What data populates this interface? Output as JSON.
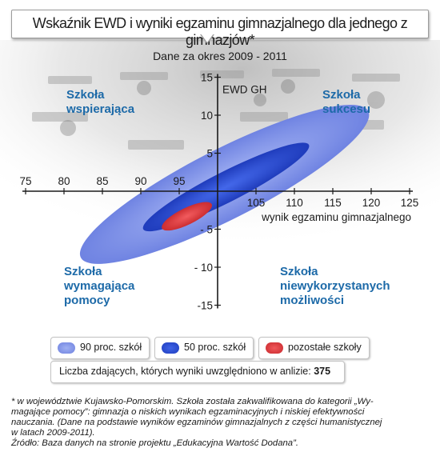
{
  "title": "Wskaźnik EWD i wyniki egzaminu gimnazjalnego dla jednego z gimnazjów*",
  "period": "Dane za okres 2009 - 2011",
  "quadrants": {
    "top_left": [
      "Szkoła",
      "wspierająca"
    ],
    "top_right": [
      "Szkoła",
      "sukcesu"
    ],
    "bottom_left": [
      "Szkoła",
      "wymagająca",
      "pomocy"
    ],
    "bottom_right": [
      "Szkoła",
      "niewykorzystanych",
      "możliwości"
    ]
  },
  "colors": {
    "axis": "#1a1a1a",
    "outer": "#7b8de6",
    "inner": "#2a4fd0",
    "red": "#e0393b",
    "quadrant_text": "#1d6aa8"
  },
  "chart_data": {
    "type": "scatter",
    "title": "Wskaźnik EWD i wyniki egzaminu gimnazjalnego dla jednego z gimnazjów*",
    "xlabel": "wynik egzaminu gimnazjalnego",
    "ylabel": "EWD GH",
    "xlim": [
      75,
      125
    ],
    "ylim": [
      -15,
      15
    ],
    "x_ticks": [
      "75",
      "80",
      "85",
      "90",
      "95",
      "105",
      "110",
      "115",
      "120",
      "125"
    ],
    "x_tick_values": [
      75,
      80,
      85,
      90,
      95,
      105,
      110,
      115,
      120,
      125
    ],
    "y_ticks": [
      "15",
      "10",
      "5",
      "- 5",
      "- 10",
      "-15"
    ],
    "y_tick_values": [
      15,
      10,
      5,
      -5,
      -10,
      -15
    ],
    "axis_origin": [
      100,
      0
    ],
    "regions": [
      {
        "name": "90 proc. szkół",
        "center": [
          100.9,
          0.9
        ],
        "semi_axes": [
          21.0,
          4.6
        ],
        "rotation_deg": -27,
        "color": "#7b8de6"
      },
      {
        "name": "50 proc. szkół",
        "center": [
          101.1,
          0.55
        ],
        "semi_axes": [
          12.1,
          2.0
        ],
        "rotation_deg": -27,
        "color": "#2a4fd0"
      },
      {
        "name": "pozostałe szkoły",
        "center": [
          96.0,
          -3.3
        ],
        "semi_axes": [
          3.6,
          1.1
        ],
        "rotation_deg": -26,
        "color": "#e0393b"
      }
    ],
    "legend": [
      "90 proc. szkół",
      "50 proc. szkół",
      "pozostałe szkoły"
    ],
    "legend_position": "bottom"
  },
  "count_label": "Liczba zdających, których wyniki uwzględniono w anlizie:",
  "count_value": "375",
  "footnote": [
    "* w województwie Kujawsko-Pomorskim. Szkoła została zakwalifikowana do kategorii „Wy-",
    "magające pomocy”: gimnazja o niskich wynikach egzaminacyjnych i niskiej efektywności",
    "nauczania. (Dane na podstawie wyników egzaminów gimnazjalnych z części humanistycznej",
    "w latach 2009-2011).",
    "Źródło: Baza danych na stronie projektu „Edukacyjna Wartość Dodana”."
  ]
}
